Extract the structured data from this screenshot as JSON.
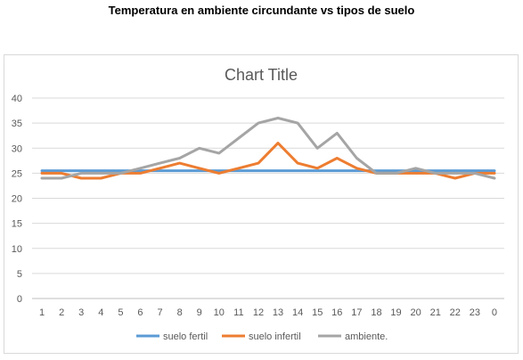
{
  "heading": "Temperatura en ambiente circundante vs tipos de suelo",
  "chart_data": {
    "type": "line",
    "title": "Chart Title",
    "xlabel": "",
    "ylabel": "",
    "categories": [
      "1",
      "2",
      "3",
      "4",
      "5",
      "6",
      "7",
      "8",
      "9",
      "10",
      "11",
      "12",
      "13",
      "14",
      "15",
      "16",
      "17",
      "18",
      "19",
      "20",
      "21",
      "22",
      "23",
      "0"
    ],
    "ylim": [
      0,
      40
    ],
    "yticks": [
      0,
      5,
      10,
      15,
      20,
      25,
      30,
      35,
      40
    ],
    "grid": true,
    "legend_position": "bottom",
    "series": [
      {
        "name": "suelo fertil",
        "color": "#5b9bd5",
        "values": [
          25.5,
          25.5,
          25.5,
          25.5,
          25.5,
          25.5,
          25.5,
          25.5,
          25.5,
          25.5,
          25.5,
          25.5,
          25.5,
          25.5,
          25.5,
          25.5,
          25.5,
          25.5,
          25.5,
          25.5,
          25.5,
          25.5,
          25.5,
          25.5
        ]
      },
      {
        "name": "suelo infertil",
        "color": "#ed7d31",
        "values": [
          25,
          25,
          24,
          24,
          25,
          25,
          26,
          27,
          26,
          25,
          26,
          27,
          31,
          27,
          26,
          28,
          26,
          25,
          25,
          25,
          25,
          24,
          25,
          25
        ]
      },
      {
        "name": "ambiente.",
        "color": "#a5a5a5",
        "values": [
          24,
          24,
          25,
          25,
          25,
          26,
          27,
          28,
          30,
          29,
          32,
          35,
          36,
          35,
          30,
          33,
          28,
          25,
          25,
          26,
          25,
          25,
          25,
          24
        ]
      }
    ]
  }
}
